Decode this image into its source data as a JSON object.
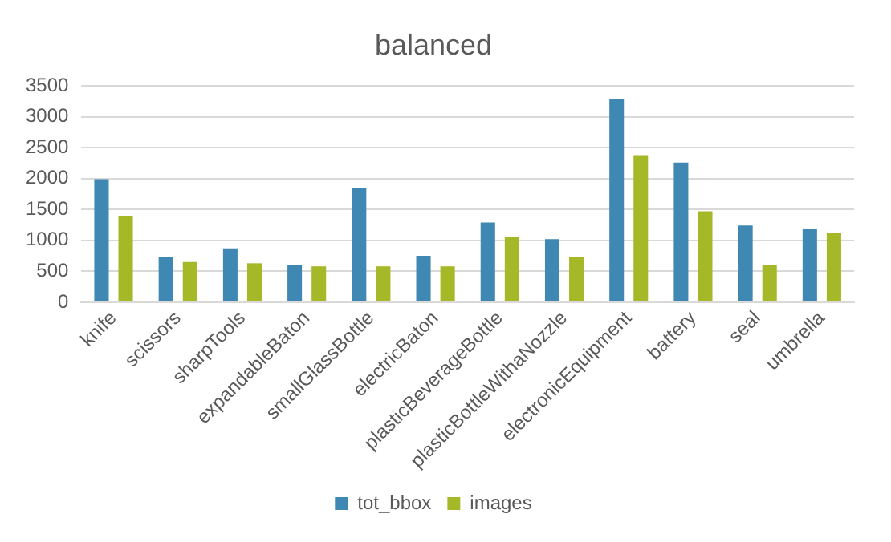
{
  "chart_data": {
    "type": "bar",
    "title": "balanced",
    "categories": [
      "knife",
      "scissors",
      "sharpTools",
      "expandableBaton",
      "smallGlassBottle",
      "electricBaton",
      "plasticBeverageBottle",
      "plasticBottleWithaNozzle",
      "electronicEquipment",
      "battery",
      "seal",
      "umbrella"
    ],
    "series": [
      {
        "name": "tot_bbox",
        "color": "#3f88b3",
        "values": [
          1990,
          730,
          870,
          600,
          1840,
          750,
          1290,
          1020,
          3290,
          2260,
          1240,
          1190
        ]
      },
      {
        "name": "images",
        "color": "#a5b828",
        "values": [
          1390,
          650,
          630,
          580,
          580,
          580,
          1050,
          730,
          2380,
          1470,
          600,
          1120
        ]
      }
    ],
    "ylim": [
      0,
      3500
    ],
    "yticks": [
      0,
      500,
      1000,
      1500,
      2000,
      2500,
      3000,
      3500
    ],
    "grid": "y",
    "legend": "bottom"
  }
}
